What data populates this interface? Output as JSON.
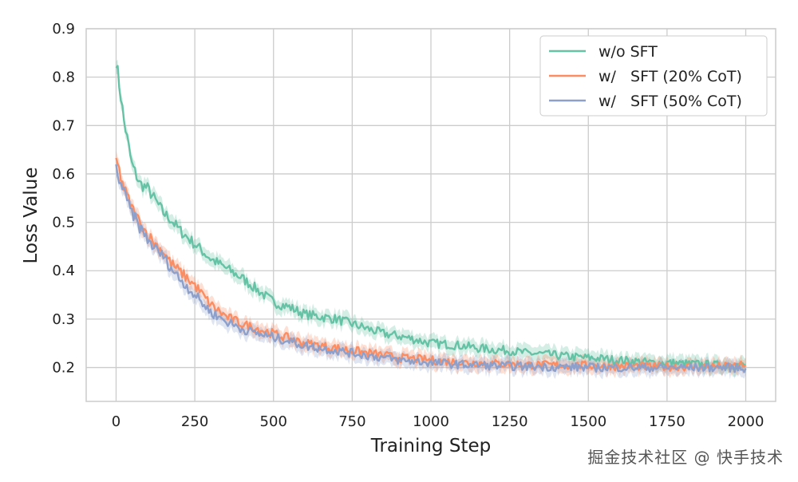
{
  "chart_data": {
    "type": "line",
    "title": "",
    "xlabel": "Training Step",
    "ylabel": "Loss Value",
    "xlim": [
      -95,
      2095
    ],
    "ylim": [
      0.13,
      0.9
    ],
    "xticks": [
      0,
      250,
      500,
      750,
      1000,
      1250,
      1500,
      1750,
      2000
    ],
    "yticks": [
      0.2,
      0.3,
      0.4,
      0.5,
      0.6,
      0.7,
      0.8,
      0.9
    ],
    "grid": true,
    "legend_position": "top-right",
    "series": [
      {
        "name": "w/o SFT",
        "color": "#66c2a5",
        "x": [
          0,
          25,
          50,
          75,
          100,
          125,
          150,
          175,
          200,
          250,
          300,
          350,
          400,
          450,
          500,
          550,
          600,
          650,
          700,
          750,
          800,
          850,
          900,
          950,
          1000,
          1050,
          1100,
          1150,
          1200,
          1250,
          1300,
          1350,
          1400,
          1450,
          1500,
          1550,
          1600,
          1650,
          1700,
          1750,
          1800,
          1850,
          1900,
          1950,
          2000
        ],
        "y": [
          0.835,
          0.71,
          0.62,
          0.58,
          0.57,
          0.545,
          0.52,
          0.505,
          0.485,
          0.455,
          0.425,
          0.405,
          0.385,
          0.36,
          0.335,
          0.325,
          0.31,
          0.305,
          0.3,
          0.29,
          0.28,
          0.27,
          0.265,
          0.258,
          0.25,
          0.248,
          0.245,
          0.24,
          0.237,
          0.235,
          0.23,
          0.228,
          0.225,
          0.222,
          0.22,
          0.218,
          0.215,
          0.213,
          0.21,
          0.21,
          0.208,
          0.207,
          0.205,
          0.205,
          0.205
        ]
      },
      {
        "name": "w/   SFT (20% CoT)",
        "color": "#fc8d62",
        "x": [
          0,
          25,
          50,
          75,
          100,
          125,
          150,
          175,
          200,
          250,
          300,
          350,
          400,
          450,
          500,
          550,
          600,
          650,
          700,
          750,
          800,
          850,
          900,
          950,
          1000,
          1050,
          1100,
          1150,
          1200,
          1250,
          1300,
          1350,
          1400,
          1450,
          1500,
          1550,
          1600,
          1650,
          1700,
          1750,
          1800,
          1850,
          1900,
          1950,
          2000
        ],
        "y": [
          0.63,
          0.57,
          0.53,
          0.5,
          0.475,
          0.455,
          0.44,
          0.415,
          0.4,
          0.37,
          0.33,
          0.305,
          0.29,
          0.28,
          0.27,
          0.26,
          0.25,
          0.245,
          0.24,
          0.235,
          0.23,
          0.225,
          0.22,
          0.218,
          0.215,
          0.213,
          0.21,
          0.21,
          0.208,
          0.207,
          0.206,
          0.205,
          0.205,
          0.204,
          0.204,
          0.203,
          0.203,
          0.203,
          0.202,
          0.202,
          0.202,
          0.202,
          0.202,
          0.202,
          0.205
        ]
      },
      {
        "name": "w/   SFT (50% CoT)",
        "color": "#8da0cb",
        "x": [
          0,
          25,
          50,
          75,
          100,
          125,
          150,
          175,
          200,
          250,
          300,
          350,
          400,
          450,
          500,
          550,
          600,
          650,
          700,
          750,
          800,
          850,
          900,
          950,
          1000,
          1050,
          1100,
          1150,
          1200,
          1250,
          1300,
          1350,
          1400,
          1450,
          1500,
          1550,
          1600,
          1650,
          1700,
          1750,
          1800,
          1850,
          1900,
          1950,
          2000
        ],
        "y": [
          0.61,
          0.56,
          0.52,
          0.49,
          0.465,
          0.445,
          0.43,
          0.405,
          0.385,
          0.35,
          0.315,
          0.295,
          0.28,
          0.27,
          0.262,
          0.255,
          0.245,
          0.24,
          0.235,
          0.23,
          0.225,
          0.22,
          0.215,
          0.213,
          0.21,
          0.208,
          0.206,
          0.205,
          0.204,
          0.203,
          0.202,
          0.202,
          0.201,
          0.201,
          0.2,
          0.2,
          0.2,
          0.2,
          0.2,
          0.2,
          0.2,
          0.2,
          0.2,
          0.2,
          0.198
        ]
      }
    ]
  },
  "watermark": "掘金技术社区 @ 快手技术"
}
